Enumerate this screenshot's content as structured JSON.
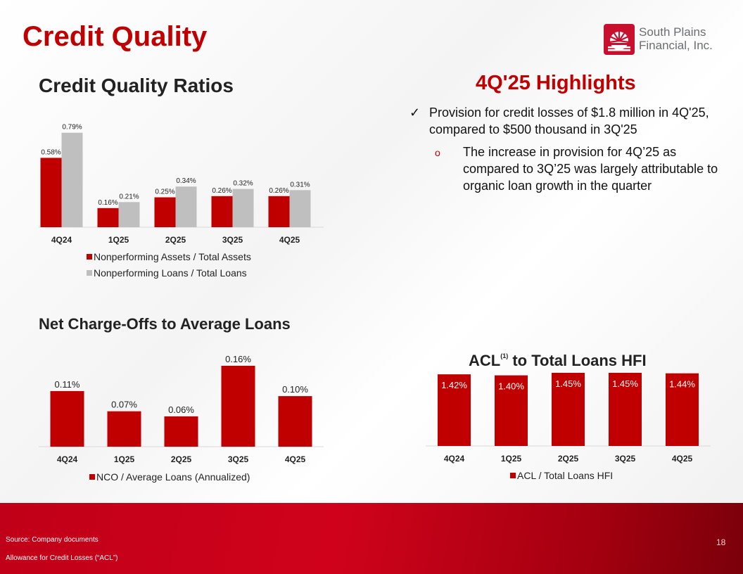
{
  "slide": {
    "title": "Credit Quality",
    "page_number": "18"
  },
  "logo": {
    "name_line1": "South Plains",
    "name_line2": "Financial, Inc.",
    "brand_color": "#c8102e"
  },
  "highlights": {
    "title": "4Q'25 Highlights",
    "bullet_icon": "checkmark-icon",
    "bullet": "Provision for credit losses of $1.8 million in 4Q'25, compared to $500 thousand in 3Q'25",
    "sub_bullet_icon": "circle-bullet-icon",
    "sub_bullet": "The increase in provision for 4Q’25 as compared to 3Q’25 was largely attributable to organic loan growth in the quarter"
  },
  "footer": {
    "source": "Source: Company documents",
    "note": "Allowance for Credit Losses (“ACL”)"
  },
  "colors": {
    "accent": "#c00000",
    "bar_gray": "#bfbfbf",
    "bar_red": "#c00000"
  },
  "chart_data": [
    {
      "id": "ratios",
      "type": "bar",
      "title": "Credit Quality Ratios",
      "categories": [
        "4Q24",
        "1Q25",
        "2Q25",
        "3Q25",
        "4Q25"
      ],
      "series": [
        {
          "name": "Nonperforming Assets / Total Assets",
          "values": [
            0.58,
            0.16,
            0.25,
            0.26,
            0.26
          ],
          "labels": [
            "0.58%",
            "0.16%",
            "0.25%",
            "0.26%",
            "0.26%"
          ],
          "color": "#c00000"
        },
        {
          "name": "Nonperforming Loans / Total Loans",
          "values": [
            0.79,
            0.21,
            0.34,
            0.32,
            0.31
          ],
          "labels": [
            "0.79%",
            "0.21%",
            "0.34%",
            "0.32%",
            "0.31%"
          ],
          "color": "#bfbfbf"
        }
      ],
      "ylim": [
        0,
        0.8
      ],
      "legend": "bottom"
    },
    {
      "id": "nco",
      "type": "bar",
      "title": "Net Charge-Offs to Average Loans",
      "categories": [
        "4Q24",
        "1Q25",
        "2Q25",
        "3Q25",
        "4Q25"
      ],
      "series": [
        {
          "name": "NCO / Average Loans (Annualized)",
          "values": [
            0.11,
            0.07,
            0.06,
            0.16,
            0.1
          ],
          "labels": [
            "0.11%",
            "0.07%",
            "0.06%",
            "0.16%",
            "0.10%"
          ],
          "color": "#c00000"
        }
      ],
      "ylim": [
        0,
        0.16
      ],
      "legend": "bottom"
    },
    {
      "id": "acl",
      "type": "bar",
      "title": "ACL",
      "title_superscript": "(1)",
      "title_suffix": "to Total Loans HFI",
      "categories": [
        "4Q24",
        "1Q25",
        "2Q25",
        "3Q25",
        "4Q25"
      ],
      "series": [
        {
          "name": "ACL / Total Loans HFI",
          "values": [
            1.42,
            1.4,
            1.45,
            1.45,
            1.44
          ],
          "labels": [
            "1.42%",
            "1.40%",
            "1.45%",
            "1.45%",
            "1.44%"
          ],
          "color": "#c00000"
        }
      ],
      "ylim": [
        0,
        1.45
      ],
      "legend": "bottom"
    }
  ]
}
